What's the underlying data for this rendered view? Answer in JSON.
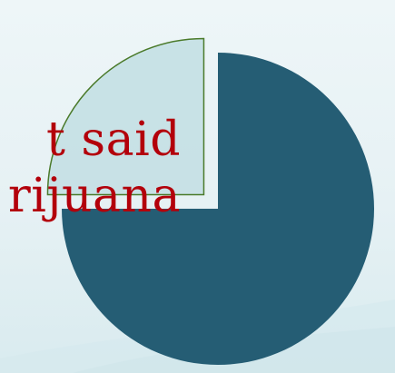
{
  "chart_data": {
    "type": "pie",
    "title": "",
    "slices": [
      {
        "label": "",
        "value": 75,
        "color": "#255d74",
        "exploded": false
      },
      {
        "label": "",
        "value": 25,
        "color": "#c2dee3",
        "exploded": true
      }
    ],
    "annotation_lines": [
      "t said",
      "rijuana"
    ],
    "annotation_color": "#b3000b",
    "slice_outline_color": "#4a7a2a"
  }
}
